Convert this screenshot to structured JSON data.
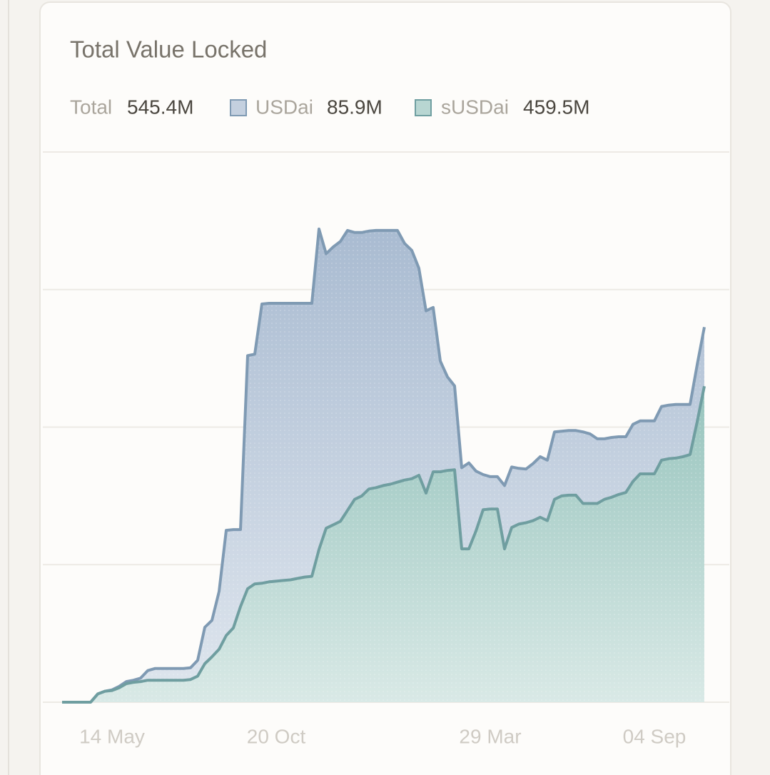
{
  "chart_data": {
    "type": "stacked-area",
    "title": "Total Value Locked",
    "total_label": "Total",
    "total_value_label": "545.4M",
    "categories": [
      null,
      null,
      null,
      null,
      null,
      null,
      null,
      "14 May",
      null,
      null,
      null,
      null,
      null,
      null,
      null,
      null,
      null,
      null,
      null,
      null,
      null,
      null,
      null,
      null,
      null,
      null,
      null,
      null,
      null,
      null,
      "20 Oct",
      null,
      null,
      null,
      null,
      null,
      null,
      null,
      null,
      null,
      null,
      null,
      null,
      null,
      null,
      null,
      null,
      null,
      null,
      null,
      null,
      null,
      null,
      null,
      null,
      null,
      null,
      null,
      null,
      null,
      "29 Mar",
      null,
      null,
      null,
      null,
      null,
      null,
      null,
      null,
      null,
      null,
      null,
      null,
      null,
      null,
      null,
      null,
      null,
      null,
      null,
      null,
      null,
      null,
      "04 Sep",
      null,
      null,
      null,
      null,
      null,
      null,
      null
    ],
    "series": [
      {
        "name": "USDai",
        "color": "#7f9ab3",
        "fill": "#b9c7da",
        "value_label": "85.9M",
        "values": [
          0,
          0,
          0,
          0,
          0,
          0,
          0,
          1,
          2,
          3,
          3,
          5,
          14,
          17,
          17,
          17,
          17,
          17,
          17,
          23,
          53,
          53,
          84,
          153,
          143,
          112,
          339,
          334,
          406,
          405,
          404,
          403,
          402,
          400,
          398,
          397,
          466,
          399,
          404,
          407,
          407,
          388,
          383,
          375,
          374,
          371,
          369,
          366,
          344,
          332,
          301,
          265,
          239,
          161,
          136,
          122,
          118,
          125,
          87,
          51,
          47,
          47,
          92,
          88,
          81,
          78,
          83,
          88,
          88,
          98,
          94,
          94,
          94,
          104,
          101,
          94,
          88,
          87,
          84,
          81,
          83,
          77,
          77,
          77,
          78,
          78,
          78,
          76,
          73,
          83,
          85.9
        ]
      },
      {
        "name": "sUSDai",
        "color": "#6f9ea0",
        "fill": "#a8cdc7",
        "value_label": "459.5M",
        "values": [
          0,
          0,
          0,
          0,
          0,
          12,
          16,
          17,
          21,
          27,
          29,
          30,
          32,
          32,
          32,
          32,
          32,
          32,
          33,
          38,
          56,
          66,
          77,
          97,
          108,
          139,
          165,
          172,
          173,
          175,
          176,
          177,
          178,
          180,
          182,
          183,
          222,
          253,
          258,
          263,
          279,
          295,
          300,
          310,
          312,
          315,
          317,
          320,
          323,
          325,
          330,
          304,
          335,
          335,
          337,
          338,
          223,
          223,
          249,
          280,
          281,
          281,
          223,
          254,
          259,
          261,
          264,
          269,
          264,
          295,
          300,
          301,
          301,
          289,
          289,
          289,
          295,
          298,
          302,
          305,
          321,
          332,
          332,
          332,
          352,
          354,
          355,
          357,
          360,
          408,
          459.5
        ]
      }
    ],
    "ylim": [
      0,
      800
    ],
    "grid_lines": [
      0,
      200,
      400,
      600,
      800
    ]
  }
}
